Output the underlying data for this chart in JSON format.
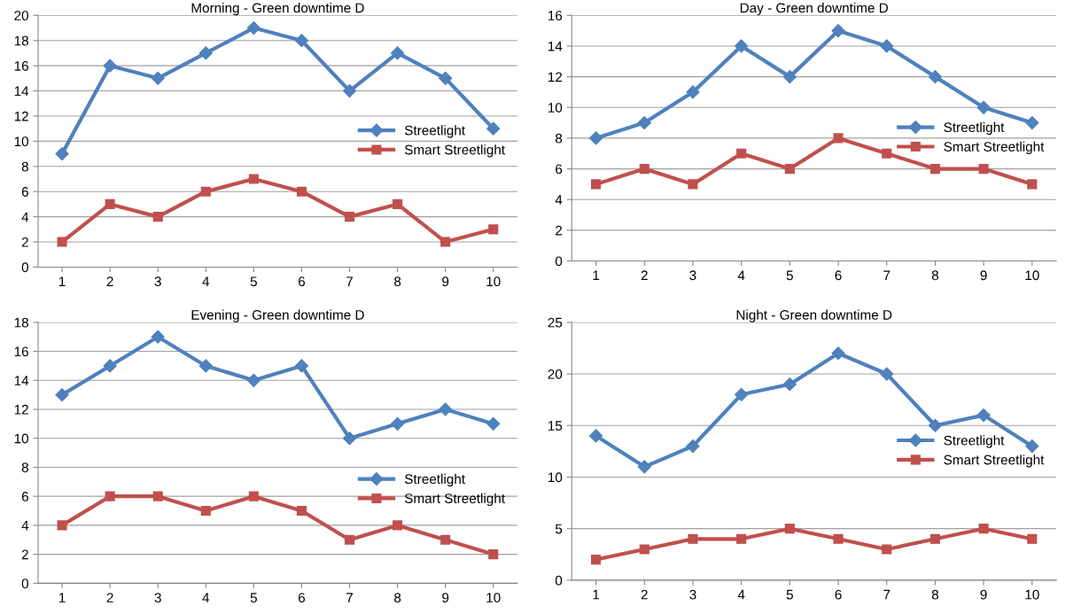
{
  "chart_data": [
    {
      "type": "line",
      "title": "Morning - Green downtime D",
      "categories": [
        "1",
        "2",
        "3",
        "4",
        "5",
        "6",
        "7",
        "8",
        "9",
        "10"
      ],
      "ylim": [
        0,
        20
      ],
      "yticks": [
        0,
        2,
        4,
        6,
        8,
        10,
        12,
        14,
        16,
        18,
        20
      ],
      "grid": "y",
      "legend": "right",
      "series": [
        {
          "name": "Streetlight",
          "color": "#4f81bd",
          "marker": "diamond",
          "values": [
            9,
            16,
            15,
            17,
            19,
            18,
            14,
            17,
            15,
            11
          ]
        },
        {
          "name": "Smart Streetlight",
          "color": "#c0504d",
          "marker": "square",
          "values": [
            2,
            5,
            4,
            6,
            7,
            6,
            4,
            5,
            2,
            3
          ]
        }
      ]
    },
    {
      "type": "line",
      "title": "Day - Green downtime D",
      "categories": [
        "1",
        "2",
        "3",
        "4",
        "5",
        "6",
        "7",
        "8",
        "9",
        "10"
      ],
      "ylim": [
        0,
        16
      ],
      "yticks": [
        0,
        2,
        4,
        6,
        8,
        10,
        12,
        14,
        16
      ],
      "grid": "y",
      "legend": "right",
      "series": [
        {
          "name": "Streetlight",
          "color": "#4f81bd",
          "marker": "diamond",
          "values": [
            8,
            9,
            11,
            14,
            12,
            15,
            14,
            12,
            10,
            9
          ]
        },
        {
          "name": "Smart Streetlight",
          "color": "#c0504d",
          "marker": "square",
          "values": [
            5,
            6,
            5,
            7,
            6,
            8,
            7,
            6,
            6,
            5
          ]
        }
      ]
    },
    {
      "type": "line",
      "title": "Evening - Green downtime D",
      "categories": [
        "1",
        "2",
        "3",
        "4",
        "5",
        "6",
        "7",
        "8",
        "9",
        "10"
      ],
      "ylim": [
        0,
        18
      ],
      "yticks": [
        0,
        2,
        4,
        6,
        8,
        10,
        12,
        14,
        16,
        18
      ],
      "grid": "y",
      "legend": "bottom right",
      "series": [
        {
          "name": "Streetlight",
          "color": "#4f81bd",
          "marker": "diamond",
          "values": [
            13,
            15,
            17,
            15,
            14,
            15,
            10,
            11,
            12,
            11
          ]
        },
        {
          "name": "Smart Streetlight",
          "color": "#c0504d",
          "marker": "square",
          "values": [
            4,
            6,
            6,
            5,
            6,
            5,
            3,
            4,
            3,
            2
          ]
        }
      ]
    },
    {
      "type": "line",
      "title": "Night - Green downtime D",
      "categories": [
        "1",
        "2",
        "3",
        "4",
        "5",
        "6",
        "7",
        "8",
        "9",
        "10"
      ],
      "ylim": [
        0,
        25
      ],
      "yticks": [
        0,
        5,
        10,
        15,
        20,
        25
      ],
      "grid": "y",
      "legend": "right",
      "series": [
        {
          "name": "Streetlight",
          "color": "#4f81bd",
          "marker": "diamond",
          "values": [
            14,
            11,
            13,
            18,
            19,
            22,
            20,
            15,
            16,
            13
          ]
        },
        {
          "name": "Smart Streetlight",
          "color": "#c0504d",
          "marker": "square",
          "values": [
            2,
            3,
            4,
            4,
            5,
            4,
            3,
            4,
            5,
            4
          ]
        }
      ]
    }
  ]
}
